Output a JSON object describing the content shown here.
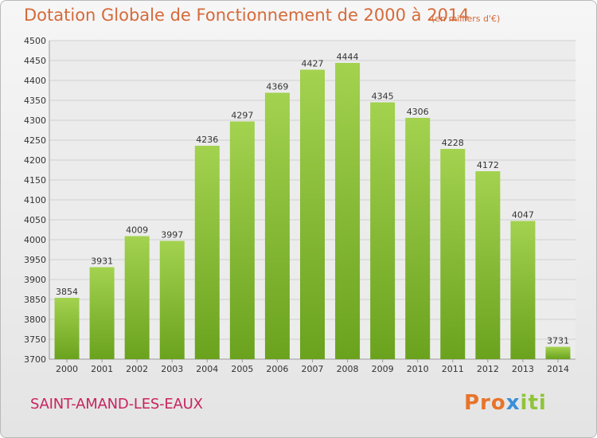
{
  "title": "Dotation Globale de Fonctionnement de 2000 à 2014",
  "unit_note": "(en milliers d'€)",
  "city": "SAINT-AMAND-LES-EAUX",
  "logo": {
    "parts": [
      "Pro",
      "x",
      "iti"
    ]
  },
  "colors": {
    "bar_light": "#a3d24f",
    "bar_dark": "#6aa21e",
    "grid": "#d0d0d0",
    "title": "#d56a3a",
    "city": "#c8245d"
  },
  "chart_data": {
    "type": "bar",
    "title": "Dotation Globale de Fonctionnement de 2000 à 2014",
    "ylabel": "",
    "xlabel": "",
    "categories": [
      "2000",
      "2001",
      "2002",
      "2003",
      "2004",
      "2005",
      "2006",
      "2007",
      "2008",
      "2009",
      "2010",
      "2011",
      "2012",
      "2013",
      "2014"
    ],
    "values": [
      3854,
      3931,
      4009,
      3997,
      4236,
      4297,
      4369,
      4427,
      4444,
      4345,
      4306,
      4228,
      4172,
      4047,
      3731
    ],
    "ylim": [
      3700,
      4500
    ],
    "yticks": [
      3700,
      3750,
      3800,
      3850,
      3900,
      3950,
      4000,
      4050,
      4100,
      4150,
      4200,
      4250,
      4300,
      4350,
      4400,
      4450,
      4500
    ],
    "grid": true
  }
}
